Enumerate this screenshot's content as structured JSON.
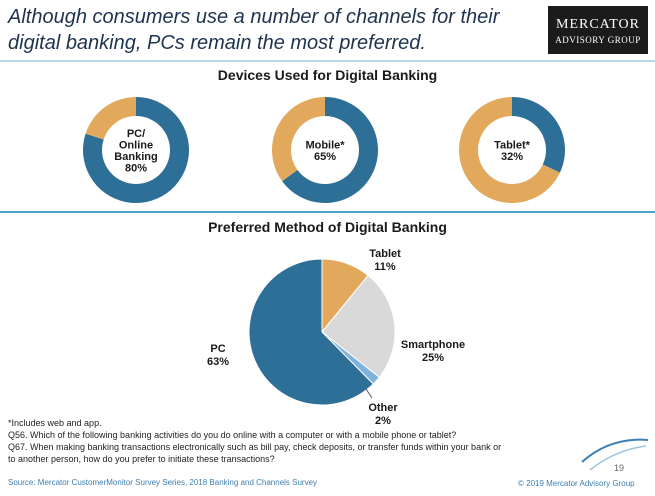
{
  "headline": "Although consumers use a number of channels for their digital banking, PCs remain the most preferred.",
  "logo": {
    "line1": "MERCATOR",
    "line2": "ADVISORY GROUP"
  },
  "colors": {
    "blue": "#2e6f97",
    "orange": "#e2a95c",
    "gray": "#d9d9d9",
    "lightblue": "#7fb3dc",
    "accent": "#4aa3cf"
  },
  "chart_data": [
    {
      "type": "pie",
      "title": "Devices Used for Digital Banking",
      "donuts": [
        {
          "label_lines": [
            "PC/",
            "Online",
            "Banking",
            "80%"
          ],
          "value": 80
        },
        {
          "label_lines": [
            "Mobile*",
            "65%"
          ],
          "value": 65
        },
        {
          "label_lines": [
            "Tablet*",
            "32%"
          ],
          "value": 32
        }
      ]
    },
    {
      "type": "pie",
      "title": "Preferred Method of Digital Banking",
      "slices": [
        {
          "name": "PC",
          "pct_label": "63%",
          "value": 63,
          "color": "#2e6f97"
        },
        {
          "name": "Tablet",
          "pct_label": "11%",
          "value": 11,
          "color": "#e2a95c"
        },
        {
          "name": "Smartphone",
          "pct_label": "25%",
          "value": 25,
          "color": "#d9d9d9"
        },
        {
          "name": "Other",
          "pct_label": "2%",
          "value": 2,
          "color": "#7fb3dc"
        }
      ]
    }
  ],
  "footnotes": [
    "*Includes web and app.",
    "Q56. Which of the following banking activities do you do online with a computer or with a mobile phone or tablet?",
    "Q67. When making banking transactions electronically such as bill pay, check deposits, or transfer funds within your bank or",
    "to another person, how do you prefer to initiate these transactions?"
  ],
  "source": "Source: Mercator CustomerMonitor Survey Series, 2018 Banking and Channels Survey",
  "copyright": "© 2019 Mercator Advisory Group",
  "page_number": "19"
}
